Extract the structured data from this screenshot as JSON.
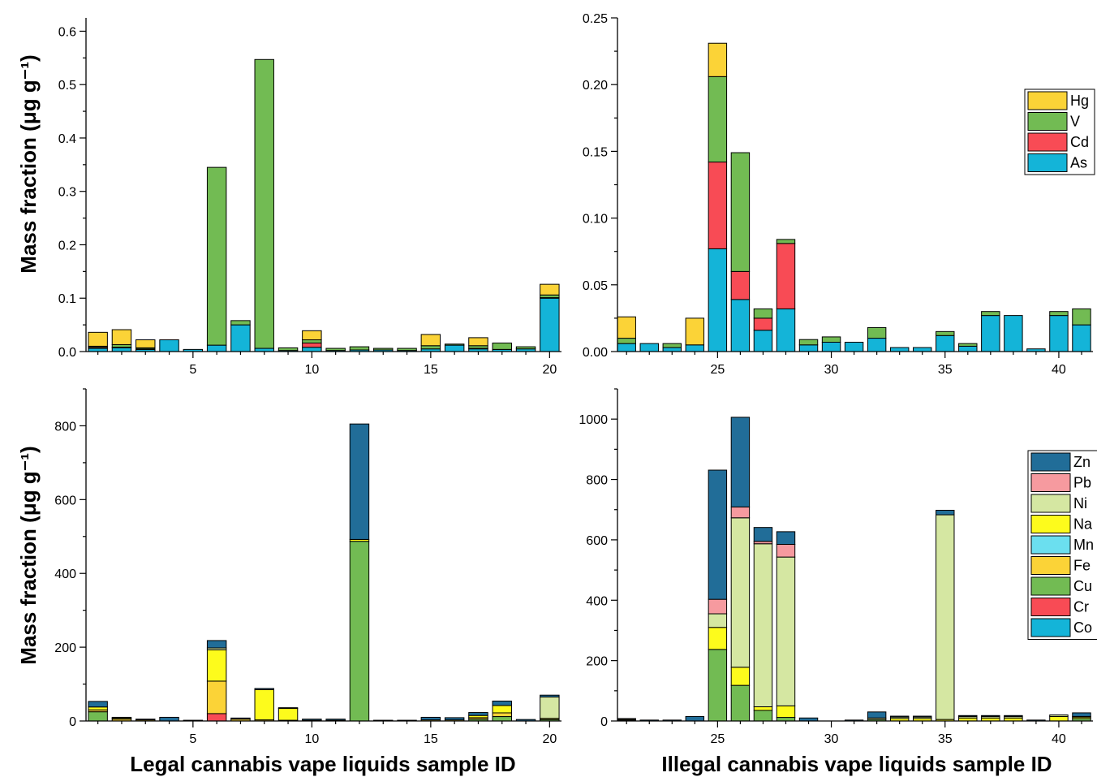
{
  "figure": {
    "ylabel": "Mass fraction (μg g⁻¹)",
    "xlabel_left": "Legal cannabis vape liquids sample ID",
    "xlabel_right": "Illegal cannabis vape liquids sample ID"
  },
  "chart_data": [
    {
      "type": "bar",
      "stacked": true,
      "panel": "top-left",
      "xlabel": "",
      "ylabel": "Mass fraction (μg g⁻¹)",
      "xlim": [
        0.5,
        20.5
      ],
      "ylim": [
        0,
        0.625
      ],
      "xticks": [
        5,
        10,
        15,
        20
      ],
      "yticks": [
        0.0,
        0.1,
        0.2,
        0.3,
        0.4,
        0.5,
        0.6
      ],
      "ytick_decimals": 1,
      "grid": false,
      "legend": null,
      "categories": [
        1,
        2,
        3,
        4,
        5,
        6,
        7,
        8,
        9,
        10,
        11,
        12,
        13,
        14,
        15,
        16,
        17,
        18,
        19,
        20
      ],
      "series": [
        {
          "name": "As",
          "color": "#14b4d8",
          "values": [
            0.006,
            0.007,
            0.004,
            0.022,
            0.004,
            0.012,
            0.05,
            0.006,
            0.002,
            0.008,
            0.002,
            0.003,
            0.003,
            0.002,
            0.005,
            0.012,
            0.005,
            0.004,
            0.005,
            0.1
          ]
        },
        {
          "name": "Cd",
          "color": "#f84b55",
          "values": [
            0.002,
            0.001,
            0.001,
            0,
            0,
            0,
            0,
            0,
            0,
            0.008,
            0,
            0,
            0,
            0,
            0,
            0,
            0.001,
            0,
            0,
            0.001
          ]
        },
        {
          "name": "V",
          "color": "#72bb53",
          "values": [
            0.002,
            0.005,
            0.002,
            0,
            0,
            0.333,
            0.008,
            0.541,
            0.005,
            0.006,
            0.004,
            0.006,
            0.003,
            0.004,
            0.006,
            0.002,
            0.005,
            0.012,
            0.004,
            0.005
          ]
        },
        {
          "name": "Hg",
          "color": "#fbd337",
          "values": [
            0.026,
            0.028,
            0.015,
            0,
            0,
            0,
            0,
            0,
            0,
            0.017,
            0,
            0,
            0,
            0,
            0.021,
            0,
            0.015,
            0,
            0,
            0.02
          ]
        }
      ]
    },
    {
      "type": "bar",
      "stacked": true,
      "panel": "top-right",
      "xlabel": "",
      "ylabel": "",
      "xlim": [
        20.6,
        41.5
      ],
      "ylim": [
        0,
        0.25
      ],
      "xticks": [
        25,
        30,
        35,
        40
      ],
      "yticks": [
        0.0,
        0.05,
        0.1,
        0.15,
        0.2,
        0.25
      ],
      "ytick_decimals": 2,
      "grid": false,
      "legend": "top-right",
      "categories": [
        21,
        22,
        23,
        24,
        25,
        26,
        27,
        28,
        29,
        30,
        31,
        32,
        33,
        34,
        35,
        36,
        37,
        38,
        39,
        40,
        41
      ],
      "series": [
        {
          "name": "As",
          "color": "#14b4d8",
          "values": [
            0.006,
            0.006,
            0.003,
            0.005,
            0.077,
            0.039,
            0.016,
            0.032,
            0.005,
            0.007,
            0.007,
            0.01,
            0.003,
            0.003,
            0.012,
            0.004,
            0.027,
            0.027,
            0.002,
            0.027,
            0.02
          ]
        },
        {
          "name": "Cd",
          "color": "#f84b55",
          "values": [
            0,
            0,
            0,
            0,
            0.065,
            0.021,
            0.009,
            0.049,
            0,
            0,
            0,
            0,
            0,
            0,
            0,
            0,
            0,
            0,
            0,
            0,
            0
          ]
        },
        {
          "name": "V",
          "color": "#72bb53",
          "values": [
            0.004,
            0,
            0.003,
            0,
            0.064,
            0.089,
            0.007,
            0.003,
            0.004,
            0.004,
            0,
            0.008,
            0,
            0,
            0.003,
            0.002,
            0.003,
            0,
            0,
            0.003,
            0.012
          ]
        },
        {
          "name": "Hg",
          "color": "#fbd337",
          "values": [
            0.016,
            0,
            0,
            0.02,
            0.025,
            0,
            0,
            0,
            0,
            0,
            0,
            0,
            0,
            0,
            0,
            0,
            0,
            0,
            0,
            0,
            0
          ]
        }
      ]
    },
    {
      "type": "bar",
      "stacked": true,
      "panel": "bottom-left",
      "xlabel": "Legal cannabis vape liquids sample ID",
      "ylabel": "Mass fraction (μg g⁻¹)",
      "xlim": [
        0.5,
        20.5
      ],
      "ylim": [
        0,
        900
      ],
      "xticks": [
        5,
        10,
        15,
        20
      ],
      "yticks": [
        0,
        200,
        400,
        600,
        800
      ],
      "ytick_decimals": 0,
      "grid": false,
      "legend": null,
      "categories": [
        1,
        2,
        3,
        4,
        5,
        6,
        7,
        8,
        9,
        10,
        11,
        12,
        13,
        14,
        15,
        16,
        17,
        18,
        19,
        20
      ],
      "series": [
        {
          "name": "Co",
          "color": "#14b4d8",
          "values": [
            0,
            0,
            0,
            0,
            0,
            0,
            0,
            0,
            0,
            0,
            0,
            0,
            0,
            0,
            0,
            0,
            0,
            0,
            0,
            0
          ]
        },
        {
          "name": "Cr",
          "color": "#f84b55",
          "values": [
            0,
            0,
            0,
            0,
            0,
            20,
            0,
            0,
            0,
            0,
            0,
            0,
            0,
            0,
            0,
            0,
            0,
            0,
            0,
            0
          ]
        },
        {
          "name": "Cu",
          "color": "#72bb53",
          "values": [
            25,
            0,
            0,
            0,
            0,
            0,
            0,
            0,
            0,
            0,
            0,
            487,
            0,
            0,
            0,
            0,
            5,
            12,
            0,
            4
          ]
        },
        {
          "name": "Fe",
          "color": "#fbd337",
          "values": [
            5,
            5,
            3,
            0,
            0,
            88,
            5,
            3,
            2,
            2,
            2,
            0,
            0,
            0,
            3,
            3,
            4,
            10,
            0,
            0
          ]
        },
        {
          "name": "Mn",
          "color": "#6bdfef",
          "values": [
            0,
            0,
            0,
            0,
            0,
            0,
            0,
            0,
            0,
            0,
            0,
            0,
            0,
            0,
            0,
            0,
            0,
            0,
            0,
            0
          ]
        },
        {
          "name": "Na",
          "color": "#fdfb1c",
          "values": [
            8,
            3,
            2,
            0,
            0,
            85,
            0,
            82,
            32,
            0,
            0,
            5,
            0,
            0,
            0,
            0,
            6,
            20,
            0,
            3
          ]
        },
        {
          "name": "Ni",
          "color": "#d5e7a2",
          "values": [
            0,
            0,
            0,
            0,
            0,
            5,
            0,
            0,
            0,
            0,
            0,
            0,
            0,
            0,
            0,
            0,
            0,
            0,
            0,
            58
          ]
        },
        {
          "name": "Pb",
          "color": "#f69a9f",
          "values": [
            0,
            0,
            0,
            0,
            0,
            0,
            0,
            0,
            0,
            0,
            0,
            0,
            0,
            0,
            0,
            0,
            0,
            0,
            0,
            0
          ]
        },
        {
          "name": "Zn",
          "color": "#216d98",
          "values": [
            15,
            2,
            0,
            10,
            2,
            20,
            3,
            3,
            2,
            3,
            3,
            313,
            2,
            2,
            7,
            6,
            8,
            12,
            4,
            5
          ]
        }
      ]
    },
    {
      "type": "bar",
      "stacked": true,
      "panel": "bottom-right",
      "xlabel": "Illegal cannabis vape liquids sample ID",
      "ylabel": "",
      "xlim": [
        20.6,
        41.5
      ],
      "ylim": [
        0,
        1100
      ],
      "xticks": [
        25,
        30,
        35,
        40
      ],
      "yticks": [
        0,
        200,
        400,
        600,
        800,
        1000
      ],
      "ytick_decimals": 0,
      "grid": false,
      "legend": "top-right",
      "categories": [
        21,
        22,
        23,
        24,
        25,
        26,
        27,
        28,
        29,
        30,
        31,
        32,
        33,
        34,
        35,
        36,
        37,
        38,
        39,
        40,
        41
      ],
      "series": [
        {
          "name": "Co",
          "color": "#14b4d8",
          "values": [
            0,
            0,
            0,
            0,
            0,
            0,
            0,
            0,
            0,
            0,
            0,
            0,
            0,
            0,
            0,
            0,
            0,
            0,
            0,
            0,
            0
          ]
        },
        {
          "name": "Cr",
          "color": "#f84b55",
          "values": [
            0,
            0,
            0,
            0,
            0,
            0,
            0,
            0,
            0,
            0,
            0,
            0,
            0,
            0,
            0,
            0,
            0,
            0,
            0,
            0,
            0
          ]
        },
        {
          "name": "Cu",
          "color": "#72bb53",
          "values": [
            0,
            0,
            0,
            0,
            237,
            118,
            35,
            12,
            0,
            0,
            0,
            5,
            0,
            0,
            0,
            0,
            0,
            0,
            0,
            0,
            8
          ]
        },
        {
          "name": "Fe",
          "color": "#fbd337",
          "values": [
            3,
            0,
            0,
            0,
            0,
            0,
            0,
            0,
            0,
            0,
            0,
            0,
            0,
            0,
            0,
            0,
            0,
            0,
            0,
            0,
            0
          ]
        },
        {
          "name": "Mn",
          "color": "#6bdfef",
          "values": [
            0,
            0,
            0,
            0,
            0,
            0,
            0,
            0,
            0,
            0,
            0,
            0,
            0,
            0,
            0,
            0,
            0,
            0,
            0,
            0,
            0
          ]
        },
        {
          "name": "Na",
          "color": "#fdfb1c",
          "values": [
            3,
            0,
            0,
            0,
            73,
            60,
            12,
            38,
            0,
            0,
            0,
            0,
            8,
            8,
            5,
            10,
            10,
            10,
            0,
            15,
            5
          ]
        },
        {
          "name": "Ni",
          "color": "#d5e7a2",
          "values": [
            0,
            0,
            0,
            0,
            45,
            495,
            540,
            493,
            0,
            0,
            0,
            5,
            5,
            5,
            678,
            5,
            5,
            5,
            0,
            5,
            2
          ]
        },
        {
          "name": "Pb",
          "color": "#f69a9f",
          "values": [
            0,
            0,
            0,
            0,
            48,
            36,
            8,
            42,
            0,
            0,
            0,
            0,
            0,
            0,
            0,
            0,
            0,
            0,
            0,
            0,
            0
          ]
        },
        {
          "name": "Zn",
          "color": "#216d98",
          "values": [
            2,
            3,
            3,
            15,
            428,
            297,
            46,
            42,
            10,
            0,
            3,
            20,
            3,
            3,
            15,
            3,
            3,
            3,
            3,
            0,
            12
          ]
        }
      ]
    }
  ]
}
